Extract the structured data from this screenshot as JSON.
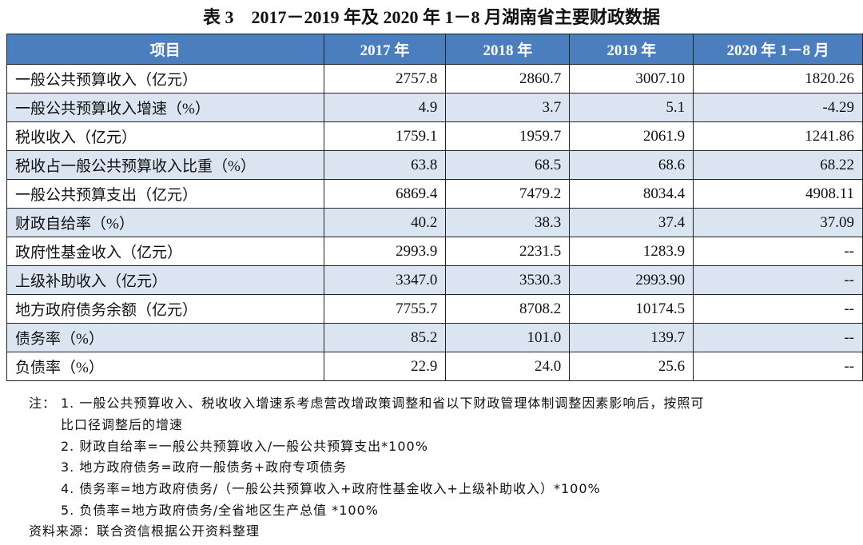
{
  "title": "表 3　2017－2019 年及 2020 年 1－8 月湖南省主要财政数据",
  "table": {
    "header": [
      "项目",
      "2017 年",
      "2018 年",
      "2019 年",
      "2020 年 1－8 月"
    ],
    "rows": [
      [
        "一般公共预算收入（亿元）",
        "2757.8",
        "2860.7",
        "3007.10",
        "1820.26"
      ],
      [
        "一般公共预算收入增速（%）",
        "4.9",
        "3.7",
        "5.1",
        "-4.29"
      ],
      [
        "税收收入（亿元）",
        "1759.1",
        "1959.7",
        "2061.9",
        "1241.86"
      ],
      [
        "税收占一般公共预算收入比重（%）",
        "63.8",
        "68.5",
        "68.6",
        "68.22"
      ],
      [
        "一般公共预算支出（亿元）",
        "6869.4",
        "7479.2",
        "8034.4",
        "4908.11"
      ],
      [
        "财政自给率（%）",
        "40.2",
        "38.3",
        "37.4",
        "37.09"
      ],
      [
        "政府性基金收入（亿元）",
        "2993.9",
        "2231.5",
        "1283.9",
        "--"
      ],
      [
        "上级补助收入（亿元）",
        "3347.0",
        "3530.3",
        "2993.90",
        "--"
      ],
      [
        "地方政府债务余额（亿元）",
        "7755.7",
        "8708.2",
        "10174.5",
        "--"
      ],
      [
        "债务率（%）",
        "85.2",
        "101.0",
        "139.7",
        "--"
      ],
      [
        "负债率（%）",
        "22.9",
        "24.0",
        "25.6",
        "--"
      ]
    ]
  },
  "notes": {
    "label": "注：",
    "items": [
      {
        "lines": [
          "1. 一般公共预算收入、税收收入增速系考虑营改增政策调整和省以下财政管理体制调整因素影响后，按照可",
          "比口径调整后的增速"
        ]
      },
      {
        "lines": [
          "2. 财政自给率=一般公共预算收入/一般公共预算支出*100%"
        ]
      },
      {
        "lines": [
          "3. 地方政府债务=政府一般债务+政府专项债务"
        ]
      },
      {
        "lines": [
          "4. 债务率=地方政府债务/（一般公共预算收入+政府性基金收入+上级补助收入）*100%"
        ]
      },
      {
        "lines": [
          "5. 负债率=地方政府债务/全省地区生产总值 *100%"
        ]
      }
    ]
  },
  "source": "资料来源：联合资信根据公开资料整理"
}
